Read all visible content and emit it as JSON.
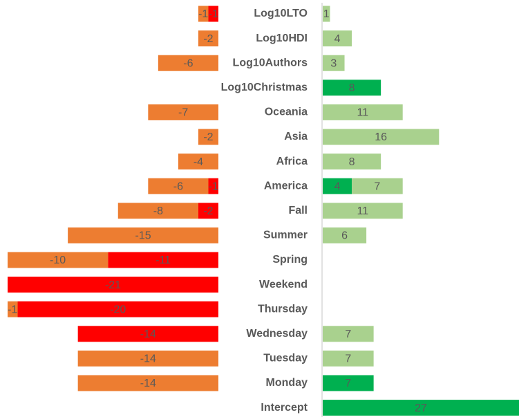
{
  "chart_data": [
    {
      "type": "bar",
      "orientation": "horizontal",
      "xlim": [
        -21,
        0
      ],
      "series": [
        {
          "color": "#ff0000",
          "values": [
            -1,
            null,
            null,
            null,
            null,
            null,
            null,
            -1,
            -2,
            null,
            -11,
            -21,
            -20,
            -14,
            null,
            null,
            null
          ]
        },
        {
          "color": "#ed7d31",
          "values": [
            -1,
            -2,
            -6,
            null,
            -7,
            -2,
            -4,
            -6,
            -8,
            -15,
            -10,
            null,
            -1,
            null,
            -14,
            -14,
            null
          ]
        }
      ]
    },
    {
      "type": "bar",
      "orientation": "horizontal",
      "xlim": [
        0,
        27
      ],
      "categories": [
        "Log10LTO",
        "Log10HDI",
        "Log10Authors",
        "Log10Christmas",
        "Oceania",
        "Asia",
        "Africa",
        "America",
        "Fall",
        "Summer",
        "Spring",
        "Weekend",
        "Thursday",
        "Wednesday",
        "Tuesday",
        "Monday",
        "Intercept"
      ],
      "series": [
        {
          "color": "#00b050",
          "values": [
            null,
            null,
            null,
            8,
            null,
            null,
            null,
            4,
            null,
            null,
            null,
            null,
            null,
            null,
            null,
            7,
            27
          ]
        },
        {
          "color": "#a9d18e",
          "values": [
            1,
            4,
            3,
            null,
            11,
            16,
            8,
            7,
            11,
            6,
            null,
            null,
            null,
            7,
            7,
            null,
            null
          ]
        }
      ]
    }
  ]
}
